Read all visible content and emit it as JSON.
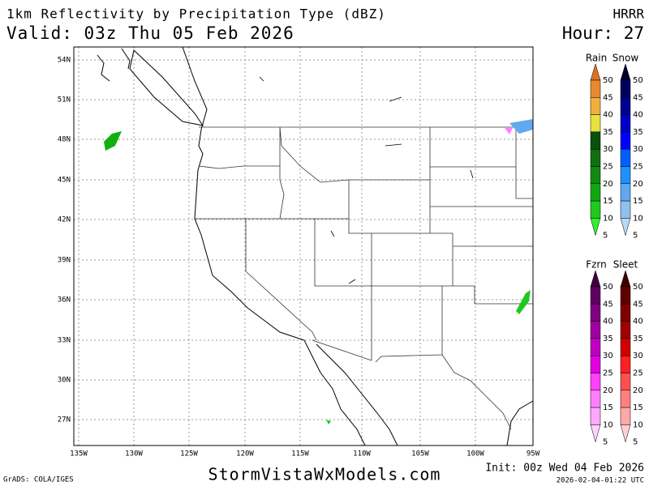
{
  "header": {
    "title": "1km Reflectivity by Precipitation Type (dBZ)",
    "model": "HRRR",
    "valid": "Valid: 03z Thu 05 Feb 2026",
    "hour": "Hour: 27"
  },
  "map": {
    "lat_labels": [
      "54N",
      "51N",
      "48N",
      "45N",
      "42N",
      "39N",
      "36N",
      "33N",
      "30N",
      "27N"
    ],
    "lon_labels": [
      "135W",
      "130W",
      "125W",
      "120W",
      "115W",
      "110W",
      "105W",
      "100W",
      "95W"
    ]
  },
  "legend": [
    {
      "title": "Rain",
      "levels": [
        50,
        45,
        40,
        35,
        30,
        25,
        20,
        15,
        10,
        5
      ],
      "colors": [
        "#e07020",
        "#e88a30",
        "#f0b040",
        "#e8e040",
        "#0a5010",
        "#107010",
        "#108a10",
        "#10a810",
        "#20c820",
        "#30f030"
      ]
    },
    {
      "title": "Snow",
      "levels": [
        50,
        45,
        40,
        35,
        30,
        25,
        20,
        15,
        10,
        5
      ],
      "colors": [
        "#000030",
        "#000060",
        "#000090",
        "#0000c8",
        "#0000ff",
        "#0060ff",
        "#1e90ff",
        "#60a8f0",
        "#90c0f0",
        "#b8d8f8"
      ]
    },
    {
      "title": "Fzrn",
      "levels": [
        50,
        45,
        40,
        35,
        30,
        25,
        20,
        15,
        10,
        5
      ],
      "colors": [
        "#400040",
        "#600060",
        "#800080",
        "#a000a0",
        "#c000c0",
        "#e000e0",
        "#ff40ff",
        "#ff80ff",
        "#ffa8ff",
        "#ffd0ff"
      ]
    },
    {
      "title": "Sleet",
      "levels": [
        50,
        45,
        40,
        35,
        30,
        25,
        20,
        15,
        10,
        5
      ],
      "colors": [
        "#400000",
        "#600000",
        "#800000",
        "#a00000",
        "#d00000",
        "#ff2020",
        "#ff5050",
        "#ff8080",
        "#ffa8a8",
        "#ffd0d0"
      ]
    }
  ],
  "footer": {
    "site": "StormVistaWxModels.com",
    "init": "Init: 00z Wed 04 Feb 2026",
    "credit": "GrADS: COLA/IGES",
    "timestamp": "2026-02-04-01:22 UTC"
  }
}
